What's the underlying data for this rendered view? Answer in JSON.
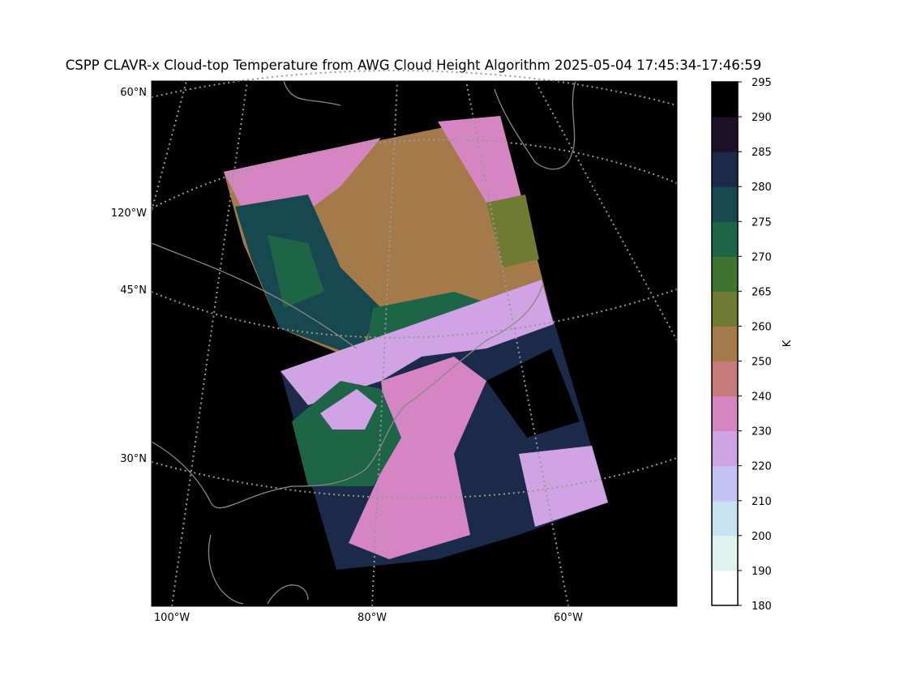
{
  "title": "CSPP CLAVR-x Cloud-top Temperature from AWG Cloud Height Algorithm 2025-05-04 17:45:34-17:46:59",
  "map": {
    "left_labels": [
      "60°N",
      "120°W",
      "45°N",
      "30°N"
    ],
    "bottom_labels": [
      "100°W",
      "80°W",
      "60°W"
    ]
  },
  "colorbar": {
    "label": "K",
    "ticks": [
      180,
      190,
      200,
      210,
      220,
      230,
      240,
      250,
      260,
      265,
      270,
      275,
      280,
      285,
      290,
      295
    ],
    "colors": [
      "#ffffff",
      "#dff3ee",
      "#c6e2f1",
      "#c4c2f2",
      "#cfa3e4",
      "#d685c3",
      "#c87a7b",
      "#a57a4a",
      "#6f7b33",
      "#3f7432",
      "#1e6447",
      "#174850",
      "#1c2a4a",
      "#1c1128",
      "#000000"
    ]
  }
}
